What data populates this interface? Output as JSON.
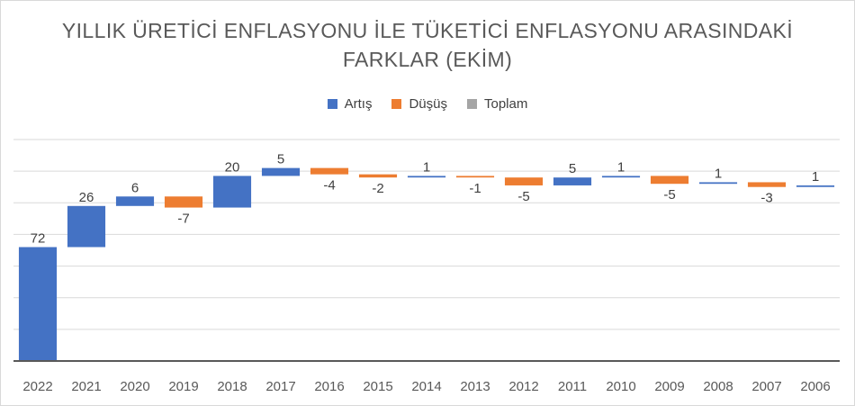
{
  "title": {
    "line1": "YILLIK ÜRETİCİ ENFLASYONU İLE TÜKETİCİ ENFLASYONU ARASINDAKİ",
    "line2": "FARKLAR (EKİM)"
  },
  "legend": [
    {
      "label": "Artış",
      "color": "#4472c4"
    },
    {
      "label": "Düşüş",
      "color": "#ed7d31"
    },
    {
      "label": "Toplam",
      "color": "#a5a5a5"
    }
  ],
  "chart_data": {
    "type": "waterfall",
    "title": "YILLIK ÜRETİCİ ENFLASYONU İLE TÜKETİCİ ENFLASYONU ARASINDAKİ FARKLAR (EKİM)",
    "categories": [
      "2022",
      "2021",
      "2020",
      "2019",
      "2018",
      "2017",
      "2016",
      "2015",
      "2014",
      "2013",
      "2012",
      "2011",
      "2010",
      "2009",
      "2008",
      "2007",
      "2006"
    ],
    "values": [
      72,
      26,
      6,
      -7,
      20,
      5,
      -4,
      -2,
      1,
      -1,
      -5,
      5,
      1,
      -5,
      1,
      -3,
      1
    ],
    "labels": [
      "72",
      "26",
      "6",
      "-7",
      "20",
      "5",
      "-4",
      "-2",
      "1",
      "-1",
      "-5",
      "5",
      "1",
      "-5",
      "1",
      "-3",
      "1"
    ],
    "ylim": [
      0,
      140
    ],
    "grid": true,
    "legend_position": "top",
    "colors": {
      "increase": "#4472c4",
      "decrease": "#ed7d31",
      "total": "#a5a5a5"
    }
  }
}
